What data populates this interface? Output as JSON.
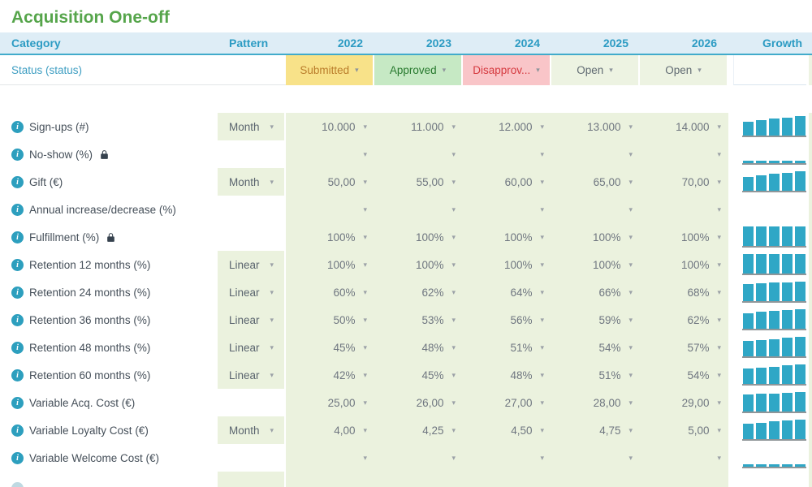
{
  "title": "Acquisition One-off",
  "icons": {
    "info": "i",
    "caret": "▾",
    "lock": "padlock"
  },
  "colors": {
    "title_green": "#56A54B",
    "header_bg": "#DEEDF6",
    "header_text": "#2C9BC3",
    "header_border": "#41ABCB",
    "cell_green": "#EBF2DE",
    "bar_teal": "#2FA7C6",
    "status_submitted_bg": "#F8E289",
    "status_approved_bg": "#C6E9C4",
    "status_disapproved_bg": "#F9C5C8",
    "status_open_bg": "#EDF3E2"
  },
  "table": {
    "headers": [
      "Category",
      "Pattern",
      "2022",
      "2023",
      "2024",
      "2025",
      "2026",
      "Growth"
    ],
    "years": [
      "2022",
      "2023",
      "2024",
      "2025",
      "2026"
    ],
    "status_label": "Status (status)",
    "status_cells": [
      {
        "label": "Submitted",
        "state": "submitted"
      },
      {
        "label": "Approved",
        "state": "approved"
      },
      {
        "label": "Disapprov...",
        "state": "disapproved"
      },
      {
        "label": "Open",
        "state": "open"
      },
      {
        "label": "Open",
        "state": "open"
      }
    ],
    "rows": [
      {
        "label": "Sign-ups (#)",
        "locked": false,
        "pattern": "Month",
        "values": [
          "10.000",
          "11.000",
          "12.000",
          "13.000",
          "14.000"
        ],
        "spark": {
          "type": "bars",
          "values": [
            10000,
            11000,
            12000,
            13000,
            14000
          ]
        }
      },
      {
        "label": "No-show (%)",
        "locked": true,
        "pattern": "",
        "values": [
          "",
          "",
          "",
          "",
          ""
        ],
        "spark": {
          "type": "stubs"
        }
      },
      {
        "label": "Gift (€)",
        "locked": false,
        "pattern": "Month",
        "values": [
          "50,00",
          "55,00",
          "60,00",
          "65,00",
          "70,00"
        ],
        "spark": {
          "type": "bars",
          "values": [
            50,
            55,
            60,
            65,
            70
          ]
        }
      },
      {
        "label": "Annual increase/decrease (%)",
        "locked": false,
        "pattern": "",
        "values": [
          "",
          "",
          "",
          "",
          ""
        ],
        "spark": {
          "type": "none"
        }
      },
      {
        "label": "Fulfillment (%)",
        "locked": true,
        "pattern": "",
        "values": [
          "100%",
          "100%",
          "100%",
          "100%",
          "100%"
        ],
        "spark": {
          "type": "bars",
          "values": [
            100,
            100,
            100,
            100,
            100
          ]
        }
      },
      {
        "label": "Retention 12 months (%)",
        "locked": false,
        "pattern": "Linear",
        "values": [
          "100%",
          "100%",
          "100%",
          "100%",
          "100%"
        ],
        "spark": {
          "type": "bars",
          "values": [
            100,
            100,
            100,
            100,
            100
          ]
        }
      },
      {
        "label": "Retention 24 months (%)",
        "locked": false,
        "pattern": "Linear",
        "values": [
          "60%",
          "62%",
          "64%",
          "66%",
          "68%"
        ],
        "spark": {
          "type": "bars",
          "values": [
            60,
            62,
            64,
            66,
            68
          ]
        }
      },
      {
        "label": "Retention 36 months (%)",
        "locked": false,
        "pattern": "Linear",
        "values": [
          "50%",
          "53%",
          "56%",
          "59%",
          "62%"
        ],
        "spark": {
          "type": "bars",
          "values": [
            50,
            53,
            56,
            59,
            62
          ]
        }
      },
      {
        "label": "Retention 48 months (%)",
        "locked": false,
        "pattern": "Linear",
        "values": [
          "45%",
          "48%",
          "51%",
          "54%",
          "57%"
        ],
        "spark": {
          "type": "bars",
          "values": [
            45,
            48,
            51,
            54,
            57
          ]
        }
      },
      {
        "label": "Retention 60 months (%)",
        "locked": false,
        "pattern": "Linear",
        "values": [
          "42%",
          "45%",
          "48%",
          "51%",
          "54%"
        ],
        "spark": {
          "type": "bars",
          "values": [
            42,
            45,
            48,
            51,
            54
          ]
        }
      },
      {
        "label": "Variable Acq. Cost (€)",
        "locked": false,
        "pattern": "",
        "values": [
          "25,00",
          "26,00",
          "27,00",
          "28,00",
          "29,00"
        ],
        "spark": {
          "type": "bars",
          "values": [
            25,
            26,
            27,
            28,
            29
          ]
        }
      },
      {
        "label": "Variable Loyalty Cost (€)",
        "locked": false,
        "pattern": "Month",
        "values": [
          "4,00",
          "4,25",
          "4,50",
          "4,75",
          "5,00"
        ],
        "spark": {
          "type": "bars",
          "values": [
            4,
            4.25,
            4.5,
            4.75,
            5
          ]
        }
      },
      {
        "label": "Variable Welcome Cost (€)",
        "locked": false,
        "pattern": "",
        "values": [
          "",
          "",
          "",
          "",
          ""
        ],
        "spark": {
          "type": "stubs"
        }
      }
    ]
  }
}
